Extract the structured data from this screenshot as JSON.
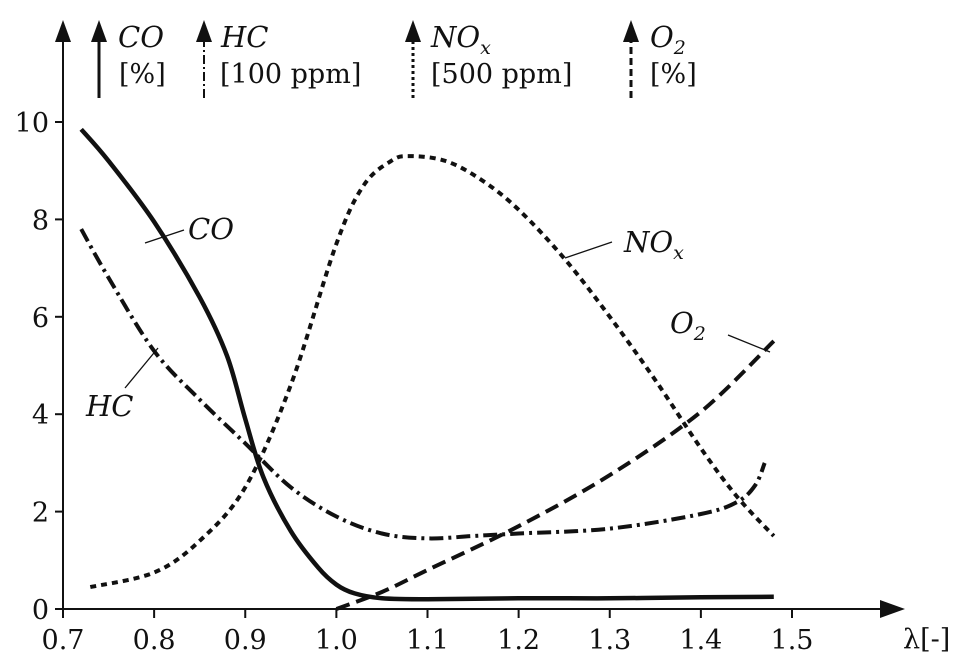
{
  "chart_data": {
    "type": "line",
    "xlabel": "λ[-]",
    "x_ticks": [
      "0.7",
      "0.8",
      "0.9",
      "1.0",
      "1.1",
      "1.2",
      "1.3",
      "1.4",
      "1.5"
    ],
    "y_ticks": [
      "0",
      "2",
      "4",
      "6",
      "8",
      "10"
    ],
    "xlim": [
      0.7,
      1.5
    ],
    "ylim": [
      0,
      10
    ],
    "legend": [
      {
        "name": "CO",
        "unit": "[%]",
        "style": "solid"
      },
      {
        "name": "HC",
        "unit": "[100 ppm]",
        "style": "dash-dot"
      },
      {
        "name": "NO",
        "sub": "x",
        "unit": "[500 ppm]",
        "style": "dotted"
      },
      {
        "name": "O",
        "sub": "2",
        "unit": "[%]",
        "style": "dashed"
      }
    ],
    "series": [
      {
        "name": "CO",
        "style": "solid",
        "points": [
          [
            0.72,
            9.85
          ],
          [
            0.75,
            9.2
          ],
          [
            0.8,
            7.95
          ],
          [
            0.85,
            6.4
          ],
          [
            0.88,
            5.2
          ],
          [
            0.9,
            3.9
          ],
          [
            0.92,
            2.7
          ],
          [
            0.95,
            1.6
          ],
          [
            0.98,
            0.85
          ],
          [
            1.0,
            0.5
          ],
          [
            1.02,
            0.32
          ],
          [
            1.05,
            0.22
          ],
          [
            1.1,
            0.2
          ],
          [
            1.2,
            0.22
          ],
          [
            1.3,
            0.22
          ],
          [
            1.4,
            0.24
          ],
          [
            1.48,
            0.25
          ]
        ]
      },
      {
        "name": "HC",
        "style": "dash-dot",
        "points": [
          [
            0.72,
            7.8
          ],
          [
            0.75,
            6.8
          ],
          [
            0.8,
            5.3
          ],
          [
            0.85,
            4.3
          ],
          [
            0.9,
            3.4
          ],
          [
            0.95,
            2.5
          ],
          [
            1.0,
            1.9
          ],
          [
            1.05,
            1.55
          ],
          [
            1.1,
            1.45
          ],
          [
            1.15,
            1.5
          ],
          [
            1.2,
            1.55
          ],
          [
            1.3,
            1.65
          ],
          [
            1.4,
            1.95
          ],
          [
            1.44,
            2.2
          ],
          [
            1.46,
            2.55
          ],
          [
            1.47,
            3.0
          ]
        ]
      },
      {
        "name": "NOx",
        "style": "dotted",
        "points": [
          [
            0.73,
            0.45
          ],
          [
            0.8,
            0.75
          ],
          [
            0.85,
            1.4
          ],
          [
            0.9,
            2.5
          ],
          [
            0.95,
            4.6
          ],
          [
            1.0,
            7.5
          ],
          [
            1.03,
            8.7
          ],
          [
            1.06,
            9.2
          ],
          [
            1.08,
            9.3
          ],
          [
            1.12,
            9.2
          ],
          [
            1.16,
            8.8
          ],
          [
            1.2,
            8.2
          ],
          [
            1.25,
            7.2
          ],
          [
            1.3,
            6.0
          ],
          [
            1.35,
            4.7
          ],
          [
            1.4,
            3.3
          ],
          [
            1.44,
            2.3
          ],
          [
            1.48,
            1.5
          ]
        ]
      },
      {
        "name": "O2",
        "style": "dashed",
        "points": [
          [
            1.0,
            0.0
          ],
          [
            1.05,
            0.35
          ],
          [
            1.1,
            0.8
          ],
          [
            1.2,
            1.7
          ],
          [
            1.3,
            2.75
          ],
          [
            1.4,
            4.05
          ],
          [
            1.48,
            5.5
          ]
        ]
      }
    ],
    "curve_labels": [
      {
        "id": "co",
        "name": "CO"
      },
      {
        "id": "hc",
        "name": "HC"
      },
      {
        "id": "nox",
        "name": "NO",
        "sub": "x"
      },
      {
        "id": "o2",
        "name": "O",
        "sub": "2"
      }
    ]
  }
}
